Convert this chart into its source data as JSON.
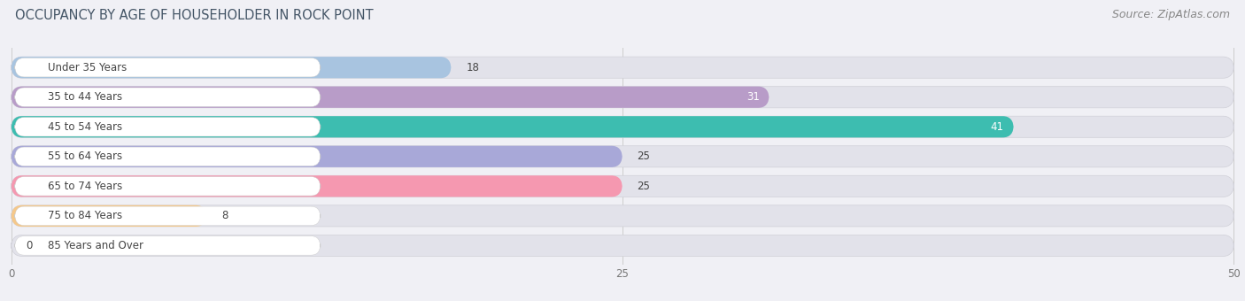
{
  "title": "OCCUPANCY BY AGE OF HOUSEHOLDER IN ROCK POINT",
  "source": "Source: ZipAtlas.com",
  "categories": [
    "Under 35 Years",
    "35 to 44 Years",
    "45 to 54 Years",
    "55 to 64 Years",
    "65 to 74 Years",
    "75 to 84 Years",
    "85 Years and Over"
  ],
  "values": [
    18,
    31,
    41,
    25,
    25,
    8,
    0
  ],
  "bar_colors": [
    "#a8c4e0",
    "#b89cc8",
    "#3dbdb0",
    "#a8a8d8",
    "#f598b0",
    "#f5c88a",
    "#f5b0a8"
  ],
  "xlim_max": 50,
  "xticks": [
    0,
    25,
    50
  ],
  "bg_color": "#f0f0f5",
  "bar_bg_color": "#e2e2ea",
  "bar_height": 0.72,
  "fig_width": 14.06,
  "fig_height": 3.4,
  "title_fontsize": 10.5,
  "source_fontsize": 9,
  "label_fontsize": 8.5,
  "value_fontsize": 8.5
}
